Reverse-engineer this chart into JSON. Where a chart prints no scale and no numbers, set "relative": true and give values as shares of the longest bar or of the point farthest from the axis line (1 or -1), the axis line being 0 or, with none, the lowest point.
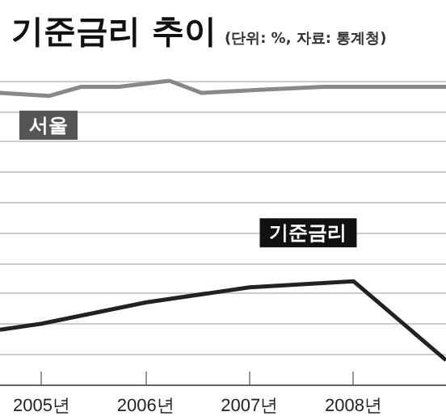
{
  "chart_data": {
    "type": "line",
    "title": "기준금리 추이",
    "subtitle": "(단위: %, 자료: 통계청)",
    "relative": true,
    "legend": false,
    "grid": "y",
    "marker": "none",
    "line_style": "solid",
    "xlim": [
      2004.6,
      2008.89
    ],
    "xticks": [
      {
        "value": 2005,
        "label": "2005년"
      },
      {
        "value": 2006,
        "label": "2006년"
      },
      {
        "value": 2007,
        "label": "2007년"
      },
      {
        "value": 2008,
        "label": "2008년"
      }
    ],
    "series": [
      {
        "name": "서울",
        "color": "#888888",
        "x": [
          2004.6,
          2005.07,
          2005.38,
          2005.74,
          2006.23,
          2006.54,
          2007.09,
          2007.71,
          2008.18,
          2008.57,
          2008.89
        ],
        "values": [
          0.96,
          0.95,
          0.98,
          0.98,
          1,
          0.96,
          0.97,
          0.98,
          0.98,
          0.98,
          0.98
        ]
      },
      {
        "name": "기준금리",
        "color": "#222222",
        "x": [
          2004.6,
          2005,
          2006,
          2007,
          2008,
          2008.89
        ],
        "values": [
          0.18,
          0.2,
          0.27,
          0.32,
          0.34,
          0.08
        ]
      }
    ]
  }
}
